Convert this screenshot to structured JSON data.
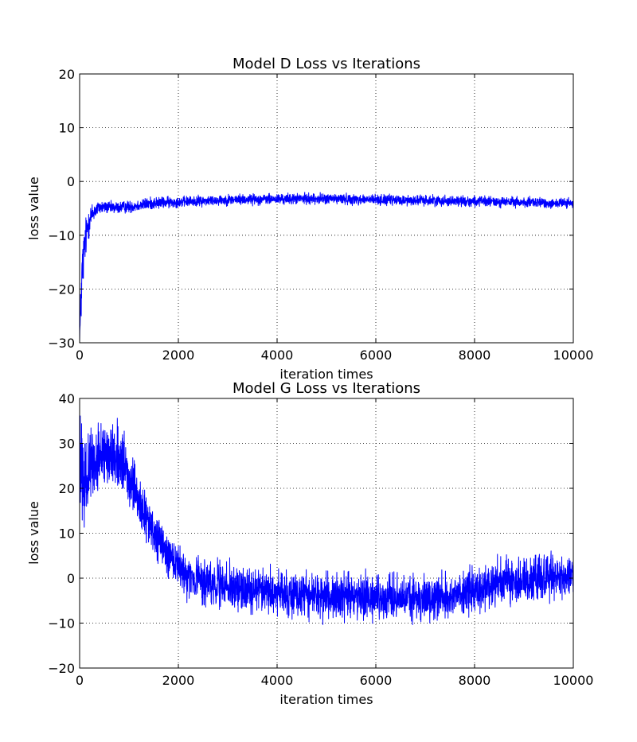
{
  "chart_data": [
    {
      "type": "line",
      "title": "Model D Loss vs Iterations",
      "xlabel": "iteration times",
      "ylabel": "loss value",
      "xlim": [
        0,
        10000
      ],
      "ylim": [
        -30,
        20
      ],
      "xticks": [
        0,
        2000,
        4000,
        6000,
        8000,
        10000
      ],
      "yticks": [
        -30,
        -20,
        -10,
        0,
        10,
        20
      ],
      "xtick_labels": [
        "0",
        "2000",
        "4000",
        "6000",
        "8000",
        "10000"
      ],
      "ytick_labels": [
        "−30",
        "−20",
        "−10",
        "0",
        "10",
        "20"
      ],
      "grid": true,
      "line_color": "#0000ff",
      "series": [
        {
          "x": [
            0,
            20,
            50,
            100,
            150,
            200,
            300,
            400,
            500,
            700,
            1000,
            1500,
            2000,
            2500,
            3000,
            3500,
            4000,
            4500,
            5000,
            5500,
            6000,
            6500,
            7000,
            7500,
            8000,
            8500,
            9000,
            9500,
            10000
          ],
          "y": [
            -29,
            -25,
            -17,
            -12,
            -9,
            -7,
            -5.5,
            -4.8,
            -4.8,
            -4.9,
            -4.7,
            -4.0,
            -3.8,
            -3.6,
            -3.4,
            -3.3,
            -3.3,
            -3.2,
            -3.2,
            -3.3,
            -3.4,
            -3.5,
            -3.5,
            -3.6,
            -3.7,
            -3.8,
            -3.9,
            -4.0,
            -4.1
          ],
          "noise": [
            2.5,
            3.5,
            4,
            3,
            2.5,
            2,
            1.2,
            0.9,
            0.8,
            0.8,
            0.8,
            0.8,
            0.7,
            0.7,
            0.7,
            0.7,
            0.7,
            0.7,
            0.7,
            0.7,
            0.7,
            0.7,
            0.7,
            0.7,
            0.7,
            0.7,
            0.7,
            0.7,
            0.7
          ]
        }
      ]
    },
    {
      "type": "line",
      "title": "Model G Loss vs Iterations",
      "xlabel": "iteration times",
      "ylabel": "loss value",
      "xlim": [
        0,
        10000
      ],
      "ylim": [
        -20,
        40
      ],
      "xticks": [
        0,
        2000,
        4000,
        6000,
        8000,
        10000
      ],
      "yticks": [
        -20,
        -10,
        0,
        10,
        20,
        30,
        40
      ],
      "xtick_labels": [
        "0",
        "2000",
        "4000",
        "6000",
        "8000",
        "10000"
      ],
      "ytick_labels": [
        "−20",
        "−10",
        "0",
        "10",
        "20",
        "30",
        "40"
      ],
      "grid": true,
      "line_color": "#0000ff",
      "series": [
        {
          "x": [
            0,
            50,
            100,
            200,
            400,
            600,
            800,
            1000,
            1200,
            1400,
            1600,
            1800,
            2000,
            2300,
            2600,
            3000,
            3500,
            4000,
            4500,
            5000,
            5500,
            6000,
            6500,
            7000,
            7500,
            7800,
            8000,
            8500,
            9000,
            9500,
            10000
          ],
          "y": [
            28,
            20,
            22,
            24,
            27,
            28,
            27,
            22,
            17,
            12,
            8,
            5,
            2,
            0,
            -1,
            -2,
            -2.5,
            -3,
            -3.5,
            -4,
            -4,
            -4.5,
            -4.5,
            -4.5,
            -4,
            -3,
            -2,
            -1,
            -0.5,
            0,
            0.5
          ],
          "noise": [
            6,
            10,
            6,
            5,
            5,
            5,
            5,
            4,
            4,
            3.5,
            3.5,
            3.5,
            3.5,
            3.5,
            3.5,
            3.5,
            3.5,
            3.5,
            3.5,
            3.5,
            3.5,
            3.5,
            3.5,
            3.5,
            3.5,
            3.5,
            3.5,
            3.5,
            3.5,
            3.5,
            3.5
          ]
        }
      ]
    }
  ]
}
